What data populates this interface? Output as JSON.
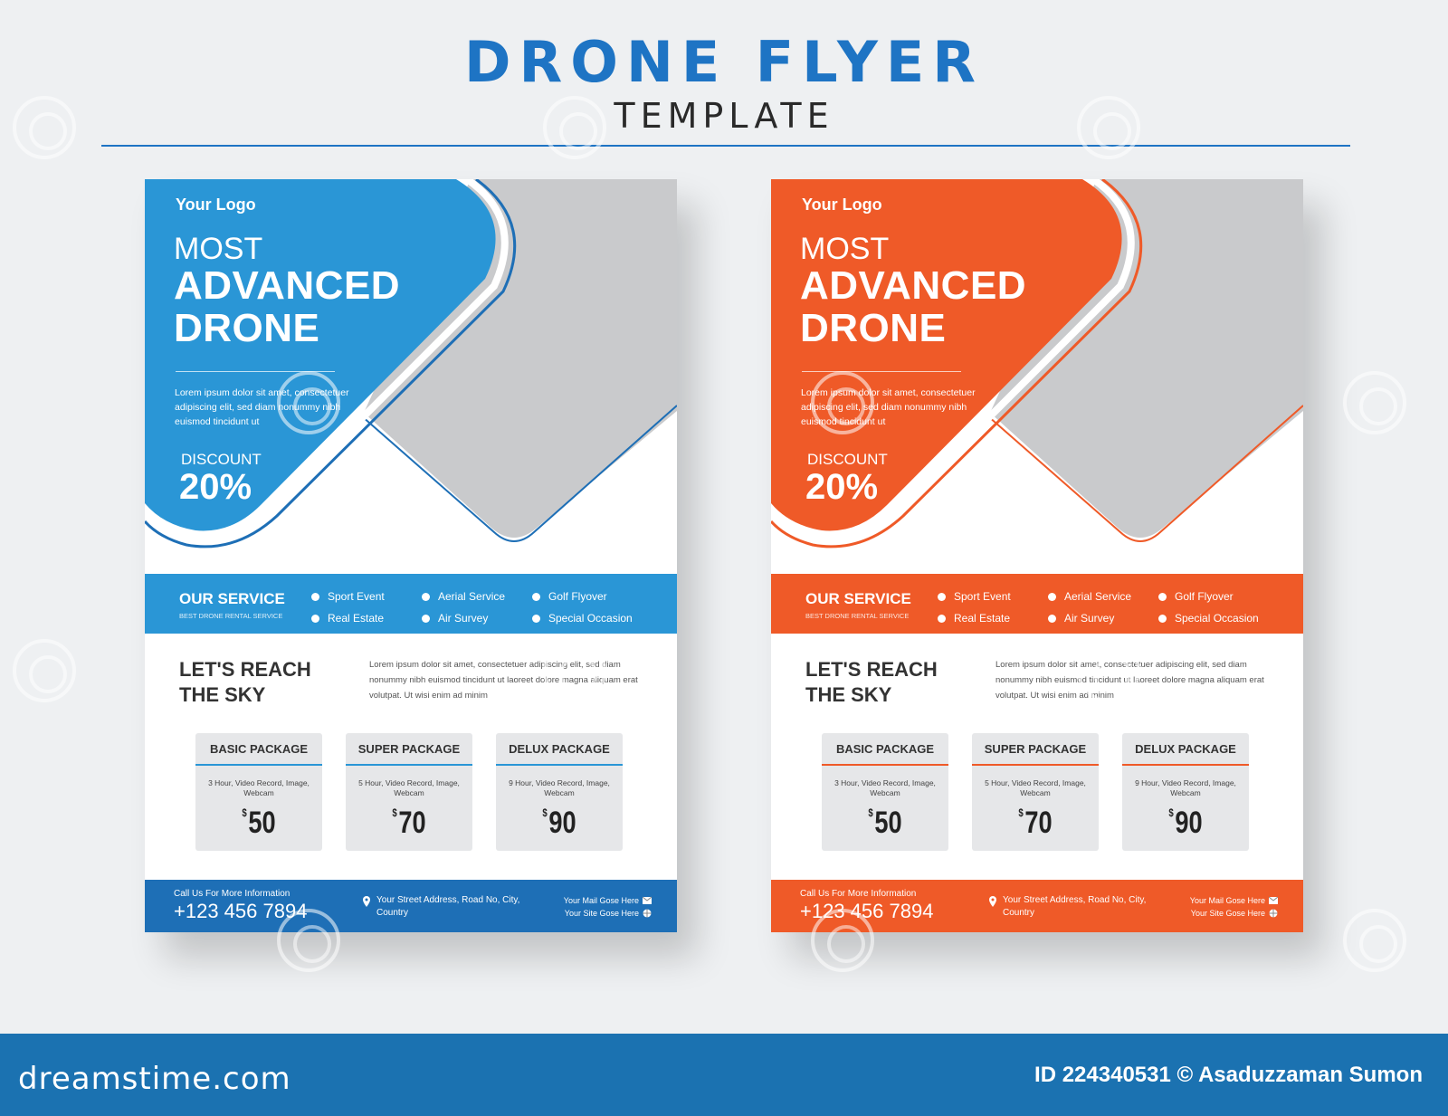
{
  "header": {
    "title": "DRONE FLYER",
    "subtitle": "TEMPLATE"
  },
  "flyers": [
    {
      "theme_color": "#2a96d6",
      "theme_dark": "#1e6fb6",
      "logo": "Your Logo",
      "headline_1": "MOST",
      "headline_2": "ADVANCED",
      "headline_3": "DRONE",
      "intro": "Lorem ipsum dolor sit amet, consectetuer adipiscing elit, sed diam nonummy nibh euismod tincidunt ut",
      "discount_label": "DISCOUNT",
      "discount_value": "20%",
      "service_title": "OUR SERVICE",
      "service_subtitle": "BEST DRONE RENTAL SERVICE",
      "services": [
        "Sport Event",
        "Aerial Service",
        "Golf Flyover",
        "Real Estate",
        "Air Survey",
        "Special Occasion"
      ],
      "reach_line_1": "LET'S REACH",
      "reach_line_2": "THE SKY",
      "body": "Lorem ipsum dolor sit amet, consectetuer adipiscing elit, sed diam nonummy nibh euismod tincidunt ut laoreet dolore magna aliquam erat volutpat. Ut wisi enim ad minim",
      "packages": [
        {
          "title": "BASIC PACKAGE",
          "desc": "3 Hour, Video Record, Image, Webcam",
          "currency": "$",
          "price": "50"
        },
        {
          "title": "SUPER PACKAGE",
          "desc": "5 Hour, Video Record, Image, Webcam",
          "currency": "$",
          "price": "70"
        },
        {
          "title": "DELUX PACKAGE",
          "desc": "9 Hour, Video Record, Image, Webcam",
          "currency": "$",
          "price": "90"
        }
      ],
      "footer_call": "Call Us For More Information",
      "footer_phone": "+123 456 7894",
      "footer_address": "Your Street Address, Road No, City, Country",
      "footer_mail": "Your Mail Gose Here",
      "footer_site": "Your Site Gose Here"
    },
    {
      "theme_color": "#ef5a28",
      "theme_dark": "#ef5a28",
      "logo": "Your Logo",
      "headline_1": "MOST",
      "headline_2": "ADVANCED",
      "headline_3": "DRONE",
      "intro": "Lorem ipsum dolor sit amet, consectetuer adipiscing elit, sed diam nonummy nibh euismod tincidunt ut",
      "discount_label": "DISCOUNT",
      "discount_value": "20%",
      "service_title": "OUR SERVICE",
      "service_subtitle": "BEST DRONE RENTAL SERVICE",
      "services": [
        "Sport Event",
        "Aerial Service",
        "Golf Flyover",
        "Real Estate",
        "Air Survey",
        "Special Occasion"
      ],
      "reach_line_1": "LET'S REACH",
      "reach_line_2": "THE SKY",
      "body": "Lorem ipsum dolor sit amet, consectetuer adipiscing elit, sed diam nonummy nibh euismod tincidunt ut laoreet dolore magna aliquam erat volutpat. Ut wisi enim ad minim",
      "packages": [
        {
          "title": "BASIC PACKAGE",
          "desc": "3 Hour, Video Record, Image, Webcam",
          "currency": "$",
          "price": "50"
        },
        {
          "title": "SUPER PACKAGE",
          "desc": "5 Hour, Video Record, Image, Webcam",
          "currency": "$",
          "price": "70"
        },
        {
          "title": "DELUX PACKAGE",
          "desc": "9 Hour, Video Record, Image, Webcam",
          "currency": "$",
          "price": "90"
        }
      ],
      "footer_call": "Call Us For More Information",
      "footer_phone": "+123 456 7894",
      "footer_address": "Your Street Address, Road No, City, Country",
      "footer_mail": "Your Mail Gose Here",
      "footer_site": "Your Site Gose Here"
    }
  ],
  "watermark": {
    "brand": "dreamstime.com",
    "credit": "ID 224340531 © Asaduzzaman Sumon"
  }
}
